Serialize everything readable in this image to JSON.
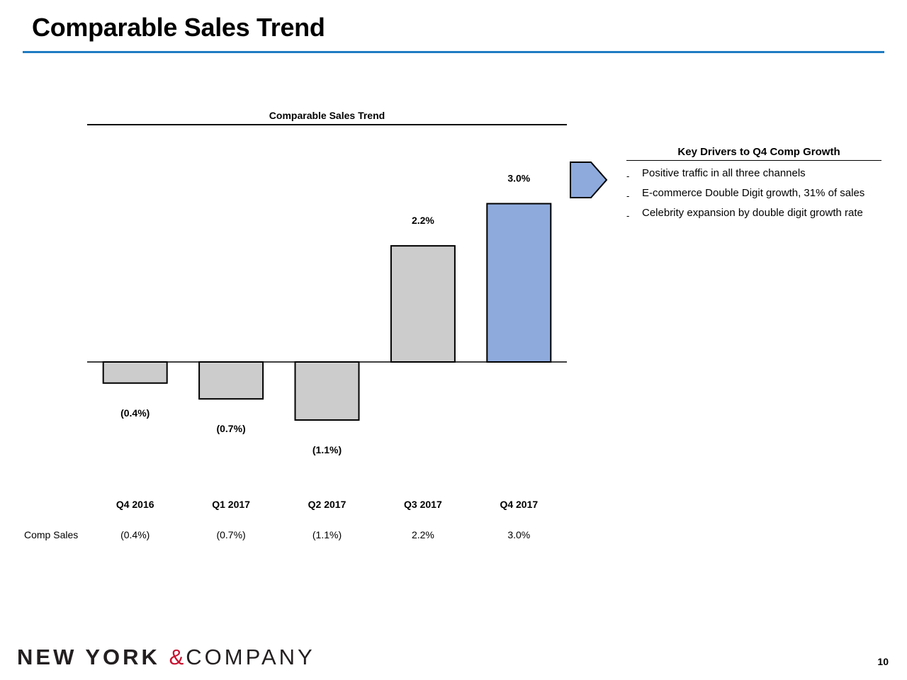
{
  "slide": {
    "title": "Comparable Sales Trend",
    "page_number": "10",
    "accent_color": "#1f7bc1"
  },
  "chart_data": {
    "type": "bar",
    "title": "Comparable Sales Trend",
    "categories": [
      "Q4 2016",
      "Q1 2017",
      "Q2 2017",
      "Q3 2017",
      "Q4 2017"
    ],
    "values": [
      -0.4,
      -0.7,
      -1.1,
      2.2,
      3.0
    ],
    "data_labels": [
      "(0.4%)",
      "(0.7%)",
      "(1.1%)",
      "2.2%",
      "3.0%"
    ],
    "bar_colors": [
      "#cccccc",
      "#cccccc",
      "#cccccc",
      "#cccccc",
      "#8eaadc"
    ],
    "row_label": "Comp Sales",
    "row_values": [
      "(0.4%)",
      "(0.7%)",
      "(1.1%)",
      "2.2%",
      "3.0%"
    ],
    "xlabel": "",
    "ylabel": "",
    "grid": false,
    "legend": "none"
  },
  "drivers": {
    "title": "Key Drivers to Q4 Comp Growth",
    "items": [
      "Positive traffic in all three channels",
      "E-commerce Double Digit growth, 31% of sales",
      "Celebrity expansion by double digit growth rate"
    ],
    "bullet": "-"
  },
  "logo": {
    "part1": "NEW YORK",
    "amp": "&",
    "part2": "COMPANY",
    "amp_color": "#c8102e"
  }
}
